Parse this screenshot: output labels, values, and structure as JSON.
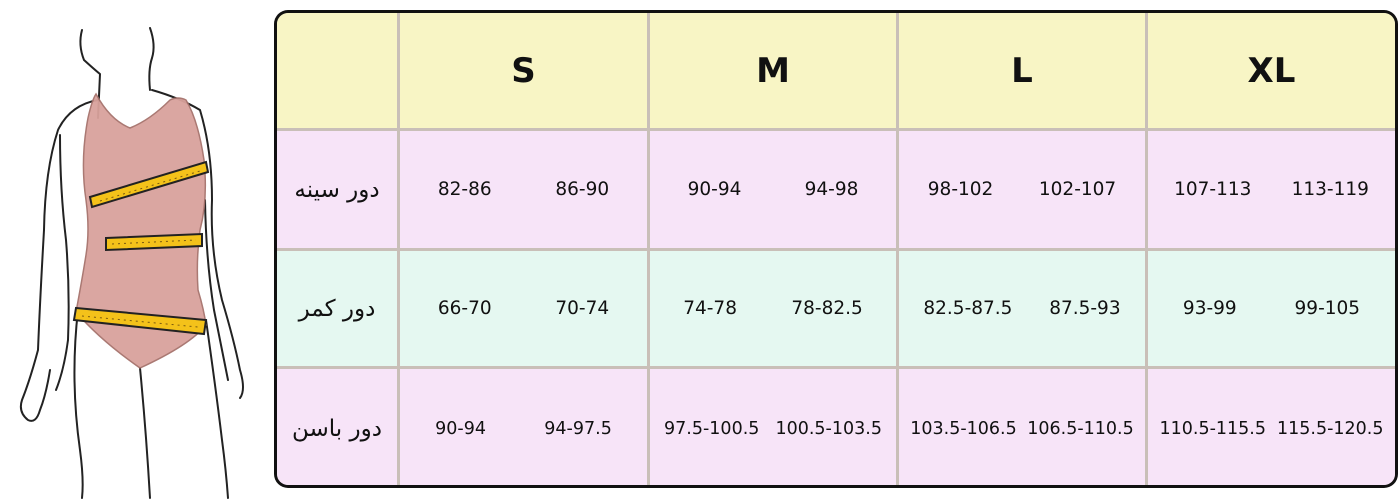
{
  "figure": {
    "icon": "body-measurement-figure",
    "colors": {
      "body": "#d9a29c",
      "tape": "#f4c21a",
      "outline": "#222222"
    }
  },
  "table": {
    "corner_label": "",
    "sizes": [
      "S",
      "M",
      "L",
      "XL"
    ],
    "rows": [
      {
        "label": "دور سینه",
        "values": [
          [
            "82-86",
            "86-90"
          ],
          [
            "90-94",
            "94-98"
          ],
          [
            "98-102",
            "102-107"
          ],
          [
            "107-113",
            "113-119"
          ]
        ]
      },
      {
        "label": "دور کمر",
        "values": [
          [
            "66-70",
            "70-74"
          ],
          [
            "74-78",
            "78-82.5"
          ],
          [
            "82.5-87.5",
            "87.5-93"
          ],
          [
            "93-99",
            "99-105"
          ]
        ]
      },
      {
        "label": "دور باسن",
        "values": [
          [
            "90-94",
            "94-97.5"
          ],
          [
            "97.5-100.5",
            "100.5-103.5"
          ],
          [
            "103.5-106.5",
            "106.5-110.5"
          ],
          [
            "110.5-115.5",
            "115.5-120.5"
          ]
        ]
      }
    ],
    "colors": {
      "header": "#f8f5c5",
      "row_pink": "#f7e4f8",
      "row_mint": "#e5f8f1",
      "grid_line": "#c9bfb8",
      "frame": "#111111"
    }
  }
}
